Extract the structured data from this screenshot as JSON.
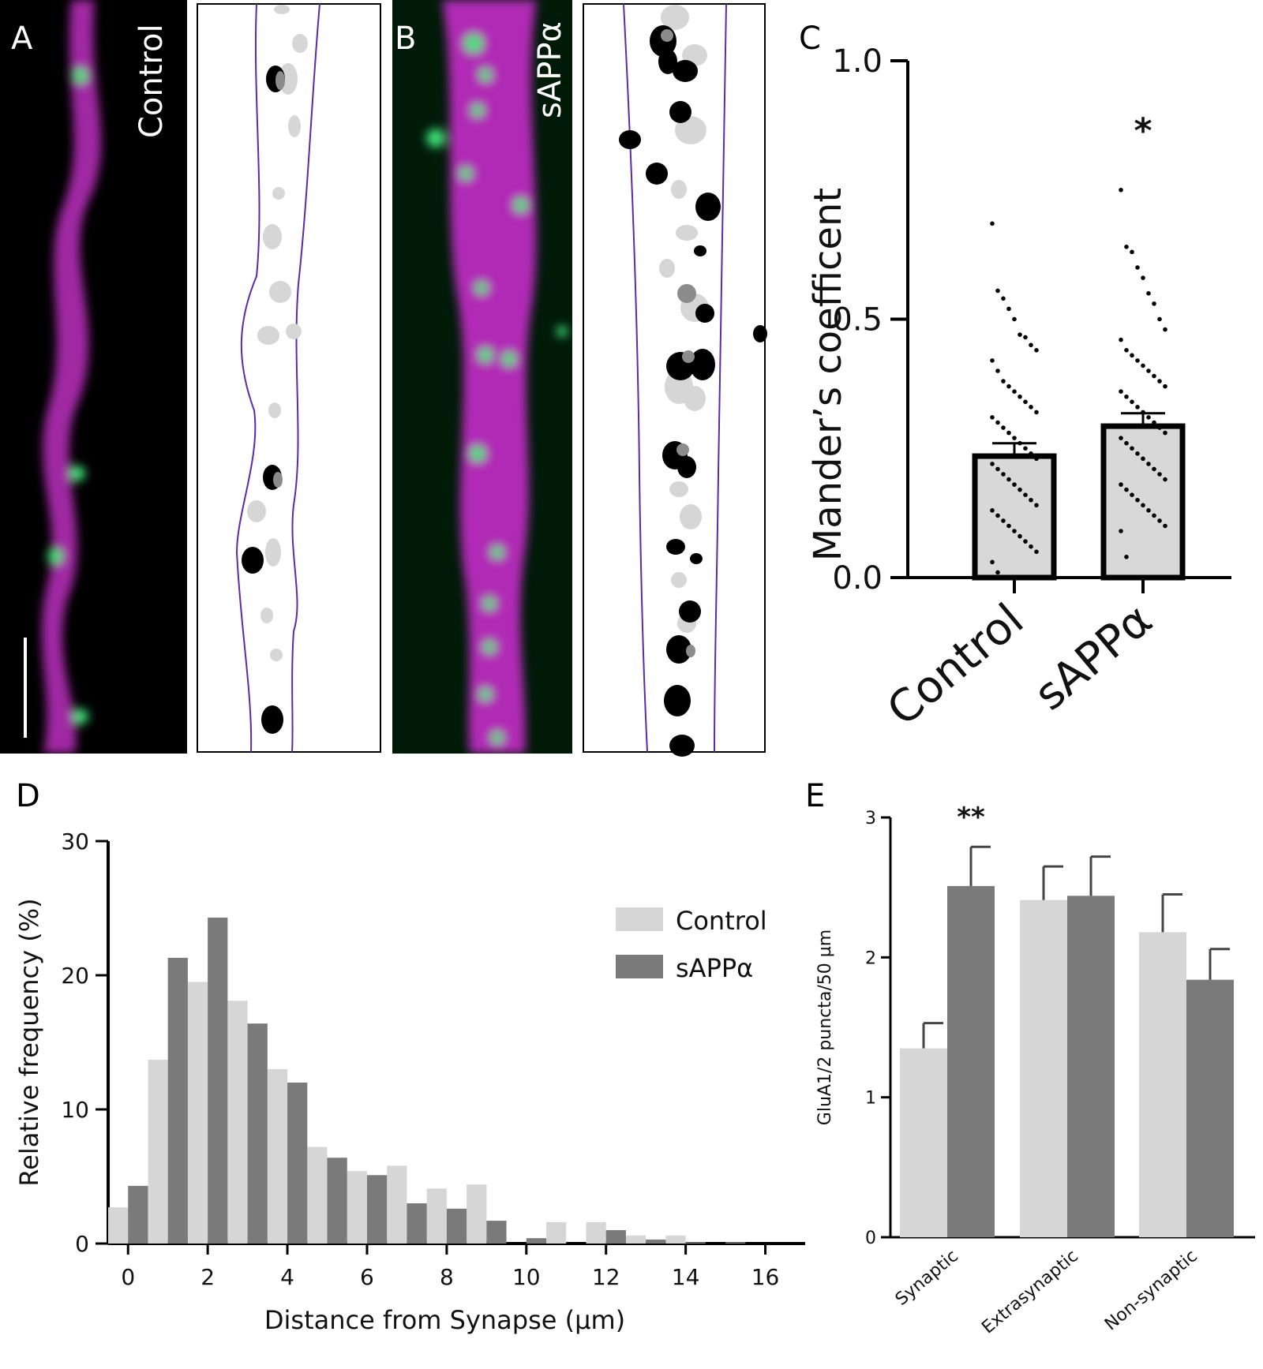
{
  "panel_labels": {
    "a": "A",
    "b": "B",
    "c": "C",
    "d": "D",
    "e": "E"
  },
  "image_labels": {
    "control": "Control",
    "sapp": "sAPPα"
  },
  "colors": {
    "magenta": "#c42ec8",
    "green": "#3fe07a",
    "dendrite_outline": "#5b2aa8",
    "light_gray": "#d6d6d6",
    "mid_gray": "#8c8c8c",
    "dark_gray": "#7a7a7a",
    "black": "#000000"
  },
  "chart_data": [
    {
      "id": "C",
      "type": "bar",
      "title": "",
      "xlabel": "",
      "ylabel": "Mander’s coefficent",
      "categories": [
        "Control",
        "sAPPα"
      ],
      "values": [
        0.235,
        0.293
      ],
      "sem": [
        0.025,
        0.025
      ],
      "ylim": [
        0,
        1.0
      ],
      "yticks": [
        "0.0",
        "0.5",
        "1.0"
      ],
      "significance": [
        "",
        "*"
      ],
      "points": [
        [
          0.685,
          0.555,
          0.54,
          0.52,
          0.5,
          0.47,
          0.465,
          0.45,
          0.44,
          0.42,
          0.4,
          0.38,
          0.37,
          0.36,
          0.35,
          0.34,
          0.33,
          0.32,
          0.31,
          0.3,
          0.29,
          0.28,
          0.27,
          0.26,
          0.25,
          0.24,
          0.23,
          0.22,
          0.21,
          0.2,
          0.19,
          0.18,
          0.17,
          0.16,
          0.15,
          0.14,
          0.13,
          0.12,
          0.11,
          0.1,
          0.09,
          0.08,
          0.07,
          0.06,
          0.05,
          0.03,
          0.01,
          0.0
        ],
        [
          0.75,
          0.64,
          0.63,
          0.6,
          0.58,
          0.55,
          0.53,
          0.5,
          0.48,
          0.46,
          0.44,
          0.43,
          0.42,
          0.41,
          0.4,
          0.39,
          0.38,
          0.37,
          0.36,
          0.35,
          0.34,
          0.33,
          0.32,
          0.31,
          0.3,
          0.29,
          0.28,
          0.27,
          0.26,
          0.25,
          0.24,
          0.23,
          0.22,
          0.21,
          0.2,
          0.19,
          0.18,
          0.17,
          0.16,
          0.15,
          0.14,
          0.13,
          0.12,
          0.11,
          0.1,
          0.09,
          0.04
        ]
      ]
    },
    {
      "id": "D",
      "type": "bar",
      "title": "",
      "xlabel": "Distance from Synapse (µm)",
      "ylabel": "Relative frequency (%)",
      "x_bins": [
        0,
        1,
        2,
        3,
        4,
        5,
        6,
        7,
        8,
        9,
        10,
        11,
        12,
        13,
        14,
        15,
        16
      ],
      "xticks": [
        "0",
        "2",
        "4",
        "6",
        "8",
        "10",
        "12",
        "14",
        "16"
      ],
      "yticks": [
        "0",
        "10",
        "20",
        "30"
      ],
      "ylim": [
        0,
        30
      ],
      "xlim": [
        -0.5,
        17
      ],
      "legend_position": "right",
      "series": [
        {
          "name": "Control",
          "values": [
            2.7,
            13.7,
            19.5,
            18.1,
            13.0,
            7.2,
            5.4,
            5.8,
            4.1,
            4.4,
            0,
            1.6,
            1.6,
            0.6,
            0.6,
            0,
            0
          ]
        },
        {
          "name": "sAPPα",
          "values": [
            4.3,
            21.3,
            24.3,
            16.4,
            12.0,
            6.4,
            5.1,
            3.0,
            2.6,
            1.7,
            0.4,
            0,
            1.0,
            0.3,
            0.1,
            0.1,
            0
          ]
        }
      ]
    },
    {
      "id": "E",
      "type": "bar",
      "title": "",
      "xlabel": "",
      "ylabel": "GluA1/2 puncta/50 µm",
      "categories": [
        "Synaptic",
        "Extrasynaptic",
        "Non-synaptic"
      ],
      "yticks": [
        "0",
        "1",
        "2",
        "3"
      ],
      "ylim": [
        0,
        3
      ],
      "series": [
        {
          "name": "",
          "values": [
            1.35,
            2.41,
            2.18
          ],
          "sem": [
            0.18,
            0.24,
            0.27
          ]
        },
        {
          "name": "",
          "values": [
            2.51,
            2.44,
            1.84
          ],
          "sem": [
            0.28,
            0.28,
            0.22
          ]
        }
      ],
      "significance": [
        "**",
        "",
        ""
      ]
    }
  ]
}
